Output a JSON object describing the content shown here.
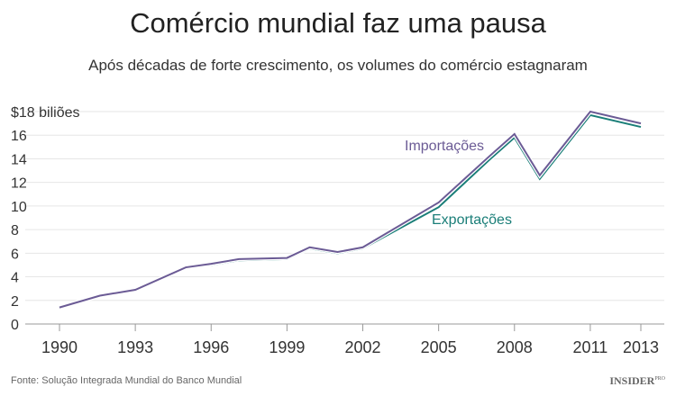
{
  "chart_data": {
    "type": "line",
    "title": "Comércio mundial faz uma pausa",
    "subtitle": "Após décadas de forte crescimento, os volumes do comércio estagnaram",
    "ylabel_top": "$18 biliões",
    "ylim": [
      0,
      18
    ],
    "xlim": [
      1990,
      2013
    ],
    "yticks": [
      "0",
      "2",
      "4",
      "6",
      "8",
      "10",
      "12",
      "14",
      "16",
      "$18 biliões"
    ],
    "ytick_values": [
      0,
      2,
      4,
      6,
      8,
      10,
      12,
      14,
      16,
      18
    ],
    "xticks": [
      "1990",
      "1993",
      "1996",
      "1999",
      "2002",
      "2005",
      "2008",
      "2011",
      "2013"
    ],
    "grid": true,
    "series": [
      {
        "name": "Importações",
        "color": "#6b5b95",
        "x": [
          1990,
          1991.6,
          1993,
          1995,
          1996,
          1997.1,
          1999,
          1999.9,
          2001,
          2002,
          2005,
          2007,
          2008,
          2009,
          2011,
          2013
        ],
        "values": [
          1.4,
          2.4,
          2.9,
          4.8,
          5.1,
          5.5,
          5.6,
          6.5,
          6.1,
          6.5,
          10.3,
          14.2,
          16.1,
          12.6,
          18.0,
          17.0
        ]
      },
      {
        "name": "Exportações",
        "color": "#1a7e78",
        "x": [
          1990,
          1991.6,
          1993,
          1995,
          1996,
          1997.1,
          1999,
          1999.9,
          2001,
          2002,
          2005,
          2007,
          2008,
          2009,
          2011,
          2013
        ],
        "values": [
          1.4,
          2.4,
          2.9,
          4.8,
          5.0,
          5.4,
          5.5,
          6.4,
          6.0,
          6.4,
          9.9,
          13.9,
          15.8,
          12.3,
          17.7,
          16.7
        ]
      }
    ]
  },
  "source": "Fonte: Solução Integrada Mundial do Banco Mundial",
  "logo": "INSIDER",
  "logo_sup": "PRO"
}
